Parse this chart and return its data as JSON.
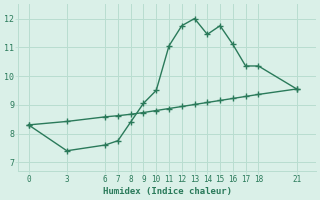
{
  "line1_x": [
    0,
    3,
    6,
    7,
    8,
    9,
    10,
    11,
    12,
    13,
    14,
    15,
    16,
    17,
    18,
    21
  ],
  "line1_y": [
    8.3,
    7.4,
    7.6,
    7.75,
    8.4,
    9.05,
    9.5,
    11.05,
    11.75,
    12.0,
    11.45,
    11.75,
    11.1,
    10.35,
    10.35,
    9.55
  ],
  "line2_x": [
    0,
    3,
    6,
    7,
    8,
    9,
    10,
    11,
    12,
    13,
    14,
    15,
    16,
    17,
    18,
    21
  ],
  "line2_y": [
    8.3,
    8.42,
    8.58,
    8.62,
    8.67,
    8.73,
    8.8,
    8.87,
    8.94,
    9.01,
    9.08,
    9.15,
    9.22,
    9.29,
    9.36,
    9.55
  ],
  "line_color": "#2a7a5a",
  "bg_color": "#daf0e8",
  "grid_color": "#b8ddd0",
  "xlabel": "Humidex (Indice chaleur)",
  "xticks": [
    0,
    3,
    6,
    7,
    8,
    9,
    10,
    11,
    12,
    13,
    14,
    15,
    16,
    17,
    18,
    21
  ],
  "yticks": [
    7,
    8,
    9,
    10,
    11,
    12
  ],
  "ylim": [
    6.7,
    12.5
  ],
  "xlim": [
    -0.8,
    22.5
  ],
  "tick_color": "#2a7a5a",
  "marker": "+",
  "markersize": 4,
  "linewidth": 1.0
}
